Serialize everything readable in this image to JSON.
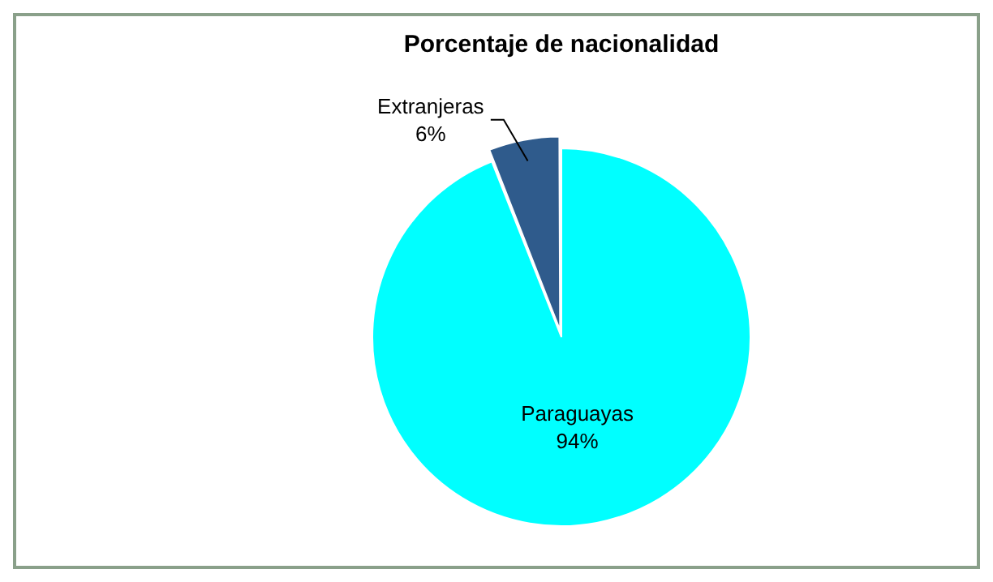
{
  "chart_data": {
    "type": "pie",
    "title": "Porcentaje de nacionalidad",
    "categories": [
      "Paraguayas",
      "Extranjeras"
    ],
    "values": [
      94,
      6
    ],
    "colors": [
      "#00ffff",
      "#2f5b8c"
    ],
    "value_labels": [
      "94%",
      "6%"
    ],
    "legend": false
  }
}
